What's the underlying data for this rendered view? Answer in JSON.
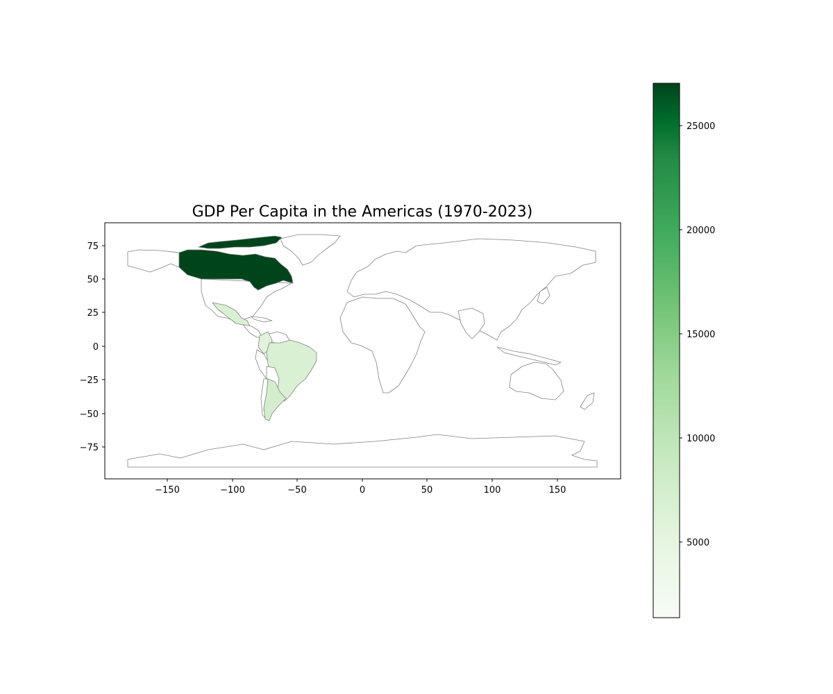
{
  "title": "GDP Per Capita in the Americas (1970-2023)",
  "map": {
    "x_ticks": [
      "−150",
      "−100",
      "−50",
      "0",
      "50",
      "100",
      "150"
    ],
    "y_ticks": [
      "75",
      "50",
      "25",
      "0",
      "−25",
      "−50",
      "−75"
    ],
    "colorbar_ticks": [
      "25000",
      "20000",
      "15000",
      "10000",
      "5000"
    ],
    "colormap": "Greens",
    "no_data_fill": "#ffffff",
    "border_color": "#808080"
  },
  "chart_data": {
    "type": "choropleth",
    "title": "GDP Per Capita in the Americas (1970-2023)",
    "xlim": [
      -198,
      198
    ],
    "ylim": [
      -101,
      92
    ],
    "x_ticks": [
      -150,
      -100,
      -50,
      0,
      50,
      100,
      150
    ],
    "y_ticks": [
      75,
      50,
      25,
      0,
      -25,
      -50,
      -75
    ],
    "colorbar": {
      "range": [
        1300,
        27000
      ],
      "ticks": [
        5000,
        10000,
        15000,
        20000,
        25000
      ],
      "colormap": "Greens"
    },
    "regions": [
      {
        "name": "Canada",
        "value": 27000,
        "color": "#00441b"
      },
      {
        "name": "Mexico",
        "value": 5600,
        "color": "#d9f0d3"
      },
      {
        "name": "Brazil",
        "value": 5500,
        "color": "#d9f0d3"
      },
      {
        "name": "Argentina",
        "value": 6000,
        "color": "#d4eecd"
      },
      {
        "name": "Colombia",
        "value": 4500,
        "color": "#e1f3dc"
      }
    ]
  }
}
